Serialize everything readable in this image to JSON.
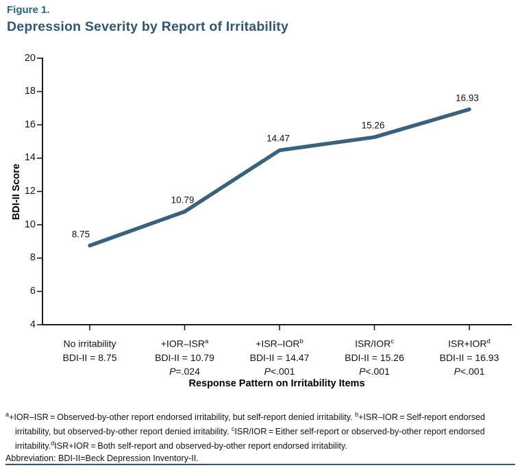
{
  "figure": {
    "label": "Figure 1.",
    "title": "Depression Severity by Report of Irritability"
  },
  "colors": {
    "figure_label": "#27648a",
    "title": "#2d5778",
    "line": "#3a627e",
    "axis": "#1a1a1a",
    "bottom_rule": "#2e567c"
  },
  "chart_data": {
    "type": "line",
    "title": "Depression Severity by Report of Irritability",
    "xlabel": "Response Pattern on Irritability Items",
    "ylabel": "BDI-II Score",
    "ylim": [
      4,
      20
    ],
    "yticks": [
      20,
      18,
      16,
      14,
      12,
      10,
      8,
      6,
      4
    ],
    "grid": false,
    "legend": "none",
    "categories": [
      "No irritability",
      "+IOR–ISR",
      "+ISR–IOR",
      "ISR/IOR",
      "ISR+IOR"
    ],
    "values": [
      8.75,
      10.79,
      14.47,
      15.26,
      16.93
    ],
    "p_values": [
      null,
      "P=.024",
      "P<.001",
      "P<.001",
      "P<.001"
    ],
    "ticks": [
      {
        "category": "No irritability",
        "bdi_label": "BDI-II = 8.75"
      },
      {
        "category": "+IOR–ISR",
        "sup": "a",
        "bdi_label": "BDI-II = 10.79",
        "p_italic": "P",
        "p_value": "=.024"
      },
      {
        "category": "+ISR–IOR",
        "sup": "b",
        "bdi_label": "BDI-II = 14.47",
        "p_italic": "P",
        "p_value": "<.001"
      },
      {
        "category": "ISR/IOR",
        "sup": "c",
        "bdi_label": "BDI-II = 15.26",
        "p_italic": "P",
        "p_value": "<.001"
      },
      {
        "category": "ISR+IOR",
        "sup": "d",
        "bdi_label": "BDI-II = 16.93",
        "p_italic": "P",
        "p_value": "<.001"
      }
    ]
  },
  "footnote": {
    "segments": [
      {
        "sup": "a"
      },
      {
        "text": "+IOR–ISR = Observed-by-other report endorsed irritability, but self-report denied irritability. "
      },
      {
        "sup": "b"
      },
      {
        "text": "+ISR–IOR = Self-report endorsed irritability, but observed-by-other report denied irritability. "
      },
      {
        "sup": "c"
      },
      {
        "text": "ISR/IOR = Either self-report or observed-by-other report endorsed irritability."
      },
      {
        "sup": "d"
      },
      {
        "text": "ISR+IOR = Both self-report and observed-by-other report endorsed irritability."
      }
    ],
    "abbreviation": "Abbreviation: BDI-II=Beck Depression Inventory-II."
  }
}
